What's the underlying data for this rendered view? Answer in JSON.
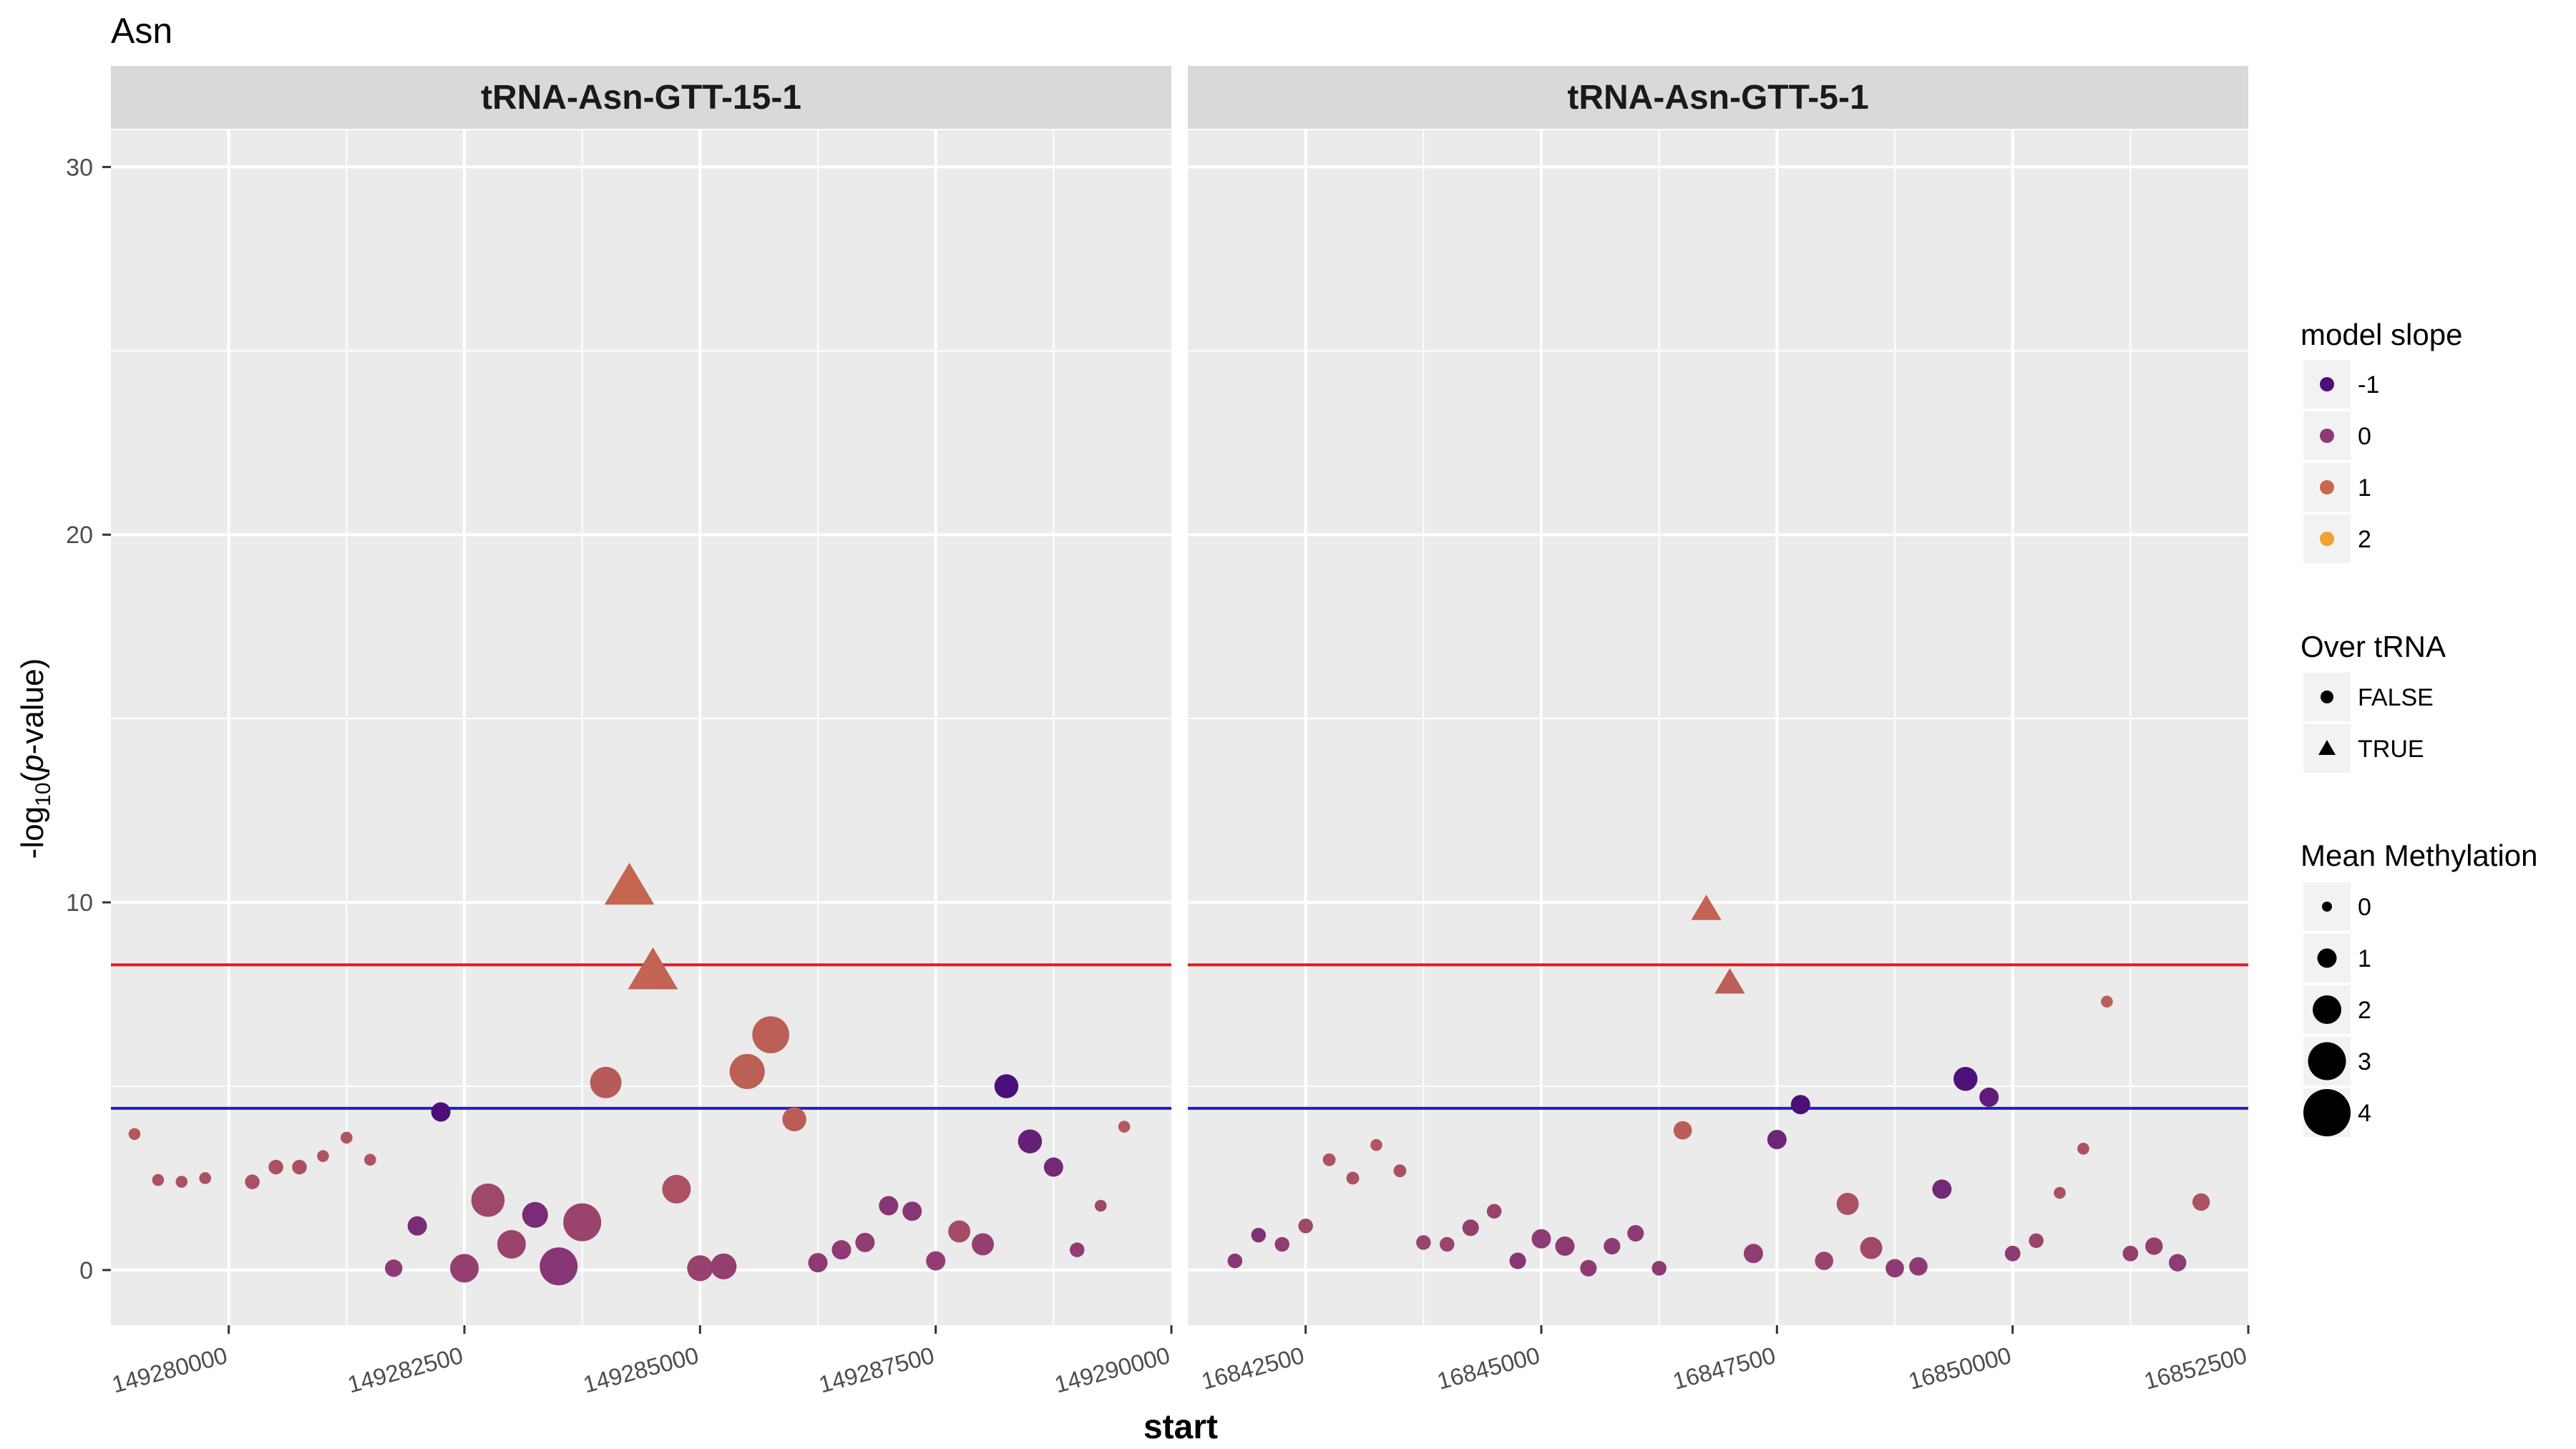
{
  "chart_data": {
    "type": "scatter",
    "title": "Asn",
    "xlabel": "start",
    "ylabel_prefix": "-log",
    "ylabel_sub": "10",
    "ylabel_italic": "p",
    "ylabel_open": "(",
    "ylabel_suffix": "-value)",
    "ylim": [
      -1.5,
      31
    ],
    "y_ticks": [
      0,
      10,
      20,
      30
    ],
    "grid": true,
    "legend_position": "right",
    "thresholds": [
      {
        "y": 8.3,
        "color": "#e41a1c"
      },
      {
        "y": 4.4,
        "color": "#1f1fc8"
      }
    ],
    "legends": {
      "color": {
        "title": "model slope",
        "items": [
          {
            "label": "-1",
            "color": "#4b0f7a"
          },
          {
            "label": "0",
            "color": "#8e3a74"
          },
          {
            "label": "1",
            "color": "#c8684f"
          },
          {
            "label": "2",
            "color": "#f0a22e"
          }
        ]
      },
      "shape": {
        "title": "Over tRNA",
        "items": [
          {
            "label": "FALSE",
            "shape": "circle"
          },
          {
            "label": "TRUE",
            "shape": "triangle"
          }
        ]
      },
      "size": {
        "title": "Mean Methylation",
        "items": [
          {
            "label": "0",
            "size": 0
          },
          {
            "label": "1",
            "size": 1
          },
          {
            "label": "2",
            "size": 2
          },
          {
            "label": "3",
            "size": 3
          },
          {
            "label": "4",
            "size": 4
          }
        ]
      }
    },
    "panels": [
      {
        "title": "tRNA-Asn-GTT-15-1",
        "xlim": [
          149278750,
          149290000
        ],
        "x_major_ticks": [
          149280000,
          149282500,
          149285000,
          149287500,
          149290000
        ],
        "x_tick_labels": [
          "149280000",
          "149282500",
          "149285000",
          "149287500",
          "149290000"
        ],
        "points": [
          {
            "x": 149279000,
            "y": 3.7,
            "slope": 0.65,
            "size": 0.2,
            "tri": false
          },
          {
            "x": 149279250,
            "y": 2.45,
            "slope": 0.5,
            "size": 0.2,
            "tri": false
          },
          {
            "x": 149279500,
            "y": 2.4,
            "slope": 0.5,
            "size": 0.2,
            "tri": false
          },
          {
            "x": 149279750,
            "y": 2.5,
            "slope": 0.5,
            "size": 0.2,
            "tri": false
          },
          {
            "x": 149280250,
            "y": 2.4,
            "slope": 0.5,
            "size": 0.5,
            "tri": false
          },
          {
            "x": 149280500,
            "y": 2.8,
            "slope": 0.5,
            "size": 0.5,
            "tri": false
          },
          {
            "x": 149280750,
            "y": 2.8,
            "slope": 0.5,
            "size": 0.5,
            "tri": false
          },
          {
            "x": 149281000,
            "y": 3.1,
            "slope": 0.55,
            "size": 0.2,
            "tri": false
          },
          {
            "x": 149281250,
            "y": 3.6,
            "slope": 0.6,
            "size": 0.2,
            "tri": false
          },
          {
            "x": 149281500,
            "y": 3.0,
            "slope": 0.55,
            "size": 0.2,
            "tri": false
          },
          {
            "x": 149281750,
            "y": 0.05,
            "slope": 0.0,
            "size": 0.8,
            "tri": false
          },
          {
            "x": 149282000,
            "y": 1.2,
            "slope": -0.3,
            "size": 1.0,
            "tri": false
          },
          {
            "x": 149282250,
            "y": 4.3,
            "slope": -1.0,
            "size": 1.0,
            "tri": false
          },
          {
            "x": 149282500,
            "y": 0.05,
            "slope": 0.1,
            "size": 2.0,
            "tri": false
          },
          {
            "x": 149282750,
            "y": 1.9,
            "slope": 0.3,
            "size": 2.5,
            "tri": false
          },
          {
            "x": 149283000,
            "y": 0.7,
            "slope": 0.2,
            "size": 2.0,
            "tri": false
          },
          {
            "x": 149283250,
            "y": 1.5,
            "slope": -0.3,
            "size": 1.7,
            "tri": false
          },
          {
            "x": 149283500,
            "y": 0.1,
            "slope": -0.1,
            "size": 3.0,
            "tri": false
          },
          {
            "x": 149283750,
            "y": 1.3,
            "slope": 0.2,
            "size": 3.0,
            "tri": false
          },
          {
            "x": 149284000,
            "y": 5.1,
            "slope": 0.7,
            "size": 2.3,
            "tri": false
          },
          {
            "x": 149284250,
            "y": 10.4,
            "slope": 0.95,
            "size": 4.0,
            "tri": true
          },
          {
            "x": 149284500,
            "y": 8.1,
            "slope": 0.9,
            "size": 4.0,
            "tri": true
          },
          {
            "x": 149284750,
            "y": 2.2,
            "slope": 0.5,
            "size": 2.0,
            "tri": false
          },
          {
            "x": 149285000,
            "y": 0.05,
            "slope": 0.15,
            "size": 1.7,
            "tri": false
          },
          {
            "x": 149285250,
            "y": 0.1,
            "slope": 0.1,
            "size": 1.7,
            "tri": false
          },
          {
            "x": 149285500,
            "y": 5.4,
            "slope": 0.8,
            "size": 2.7,
            "tri": false
          },
          {
            "x": 149285750,
            "y": 6.4,
            "slope": 0.8,
            "size": 2.9,
            "tri": false
          },
          {
            "x": 149286000,
            "y": 4.1,
            "slope": 0.75,
            "size": 1.5,
            "tri": false
          },
          {
            "x": 149286250,
            "y": 0.2,
            "slope": 0.0,
            "size": 1.0,
            "tri": false
          },
          {
            "x": 149286500,
            "y": 0.55,
            "slope": 0.0,
            "size": 1.0,
            "tri": false
          },
          {
            "x": 149286750,
            "y": 0.75,
            "slope": 0.05,
            "size": 1.0,
            "tri": false
          },
          {
            "x": 149287000,
            "y": 1.75,
            "slope": -0.1,
            "size": 1.0,
            "tri": false
          },
          {
            "x": 149287250,
            "y": 1.6,
            "slope": -0.1,
            "size": 1.0,
            "tri": false
          },
          {
            "x": 149287500,
            "y": 0.25,
            "slope": 0.05,
            "size": 1.0,
            "tri": false
          },
          {
            "x": 149287750,
            "y": 1.05,
            "slope": 0.4,
            "size": 1.3,
            "tri": false
          },
          {
            "x": 149288000,
            "y": 0.7,
            "slope": 0.1,
            "size": 1.3,
            "tri": false
          },
          {
            "x": 149288250,
            "y": 5.0,
            "slope": -1.0,
            "size": 1.5,
            "tri": false
          },
          {
            "x": 149288500,
            "y": 3.5,
            "slope": -0.6,
            "size": 1.5,
            "tri": false
          },
          {
            "x": 149288750,
            "y": 2.8,
            "slope": -0.4,
            "size": 1.0,
            "tri": false
          },
          {
            "x": 149289000,
            "y": 0.55,
            "slope": 0.05,
            "size": 0.5,
            "tri": false
          },
          {
            "x": 149289250,
            "y": 1.75,
            "slope": 0.3,
            "size": 0.2,
            "tri": false
          },
          {
            "x": 149289500,
            "y": 3.9,
            "slope": 0.65,
            "size": 0.2,
            "tri": false
          }
        ]
      },
      {
        "title": "tRNA-Asn-GTT-5-1",
        "xlim": [
          16841250,
          16852500
        ],
        "x_major_ticks": [
          16842500,
          16845000,
          16847500,
          16850000,
          16852500
        ],
        "x_tick_labels": [
          "16842500",
          "16845000",
          "16847500",
          "16850000",
          "16852500"
        ],
        "points": [
          {
            "x": 16841750,
            "y": 0.25,
            "slope": -0.1,
            "size": 0.5,
            "tri": false
          },
          {
            "x": 16842000,
            "y": 0.95,
            "slope": -0.2,
            "size": 0.5,
            "tri": false
          },
          {
            "x": 16842250,
            "y": 0.7,
            "slope": 0.05,
            "size": 0.5,
            "tri": false
          },
          {
            "x": 16842500,
            "y": 1.2,
            "slope": 0.3,
            "size": 0.5,
            "tri": false
          },
          {
            "x": 16842750,
            "y": 3.0,
            "slope": 0.55,
            "size": 0.3,
            "tri": false
          },
          {
            "x": 16843000,
            "y": 2.5,
            "slope": 0.5,
            "size": 0.3,
            "tri": false
          },
          {
            "x": 16843250,
            "y": 3.4,
            "slope": 0.6,
            "size": 0.2,
            "tri": false
          },
          {
            "x": 16843500,
            "y": 2.7,
            "slope": 0.5,
            "size": 0.3,
            "tri": false
          },
          {
            "x": 16843750,
            "y": 0.75,
            "slope": 0.2,
            "size": 0.5,
            "tri": false
          },
          {
            "x": 16844000,
            "y": 0.7,
            "slope": 0.2,
            "size": 0.5,
            "tri": false
          },
          {
            "x": 16844250,
            "y": 1.15,
            "slope": 0.1,
            "size": 0.7,
            "tri": false
          },
          {
            "x": 16844500,
            "y": 1.6,
            "slope": 0.2,
            "size": 0.5,
            "tri": false
          },
          {
            "x": 16844750,
            "y": 0.25,
            "slope": -0.1,
            "size": 0.7,
            "tri": false
          },
          {
            "x": 16845000,
            "y": 0.85,
            "slope": 0.0,
            "size": 1.0,
            "tri": false
          },
          {
            "x": 16845250,
            "y": 0.65,
            "slope": 0.0,
            "size": 1.0,
            "tri": false
          },
          {
            "x": 16845500,
            "y": 0.05,
            "slope": 0.0,
            "size": 0.7,
            "tri": false
          },
          {
            "x": 16845750,
            "y": 0.65,
            "slope": 0.0,
            "size": 0.7,
            "tri": false
          },
          {
            "x": 16846000,
            "y": 1.0,
            "slope": 0.0,
            "size": 0.7,
            "tri": false
          },
          {
            "x": 16846250,
            "y": 0.05,
            "slope": 0.0,
            "size": 0.5,
            "tri": false
          },
          {
            "x": 16846500,
            "y": 3.8,
            "slope": 0.75,
            "size": 0.9,
            "tri": false
          },
          {
            "x": 16846750,
            "y": 9.8,
            "slope": 0.9,
            "size": 2.0,
            "tri": true
          },
          {
            "x": 16847000,
            "y": 7.8,
            "slope": 0.8,
            "size": 2.0,
            "tri": true
          },
          {
            "x": 16847250,
            "y": 0.45,
            "slope": 0.05,
            "size": 1.0,
            "tri": false
          },
          {
            "x": 16847500,
            "y": 3.55,
            "slope": -0.5,
            "size": 1.0,
            "tri": false
          },
          {
            "x": 16847750,
            "y": 4.5,
            "slope": -1.0,
            "size": 1.0,
            "tri": false
          },
          {
            "x": 16848000,
            "y": 0.25,
            "slope": 0.2,
            "size": 0.9,
            "tri": false
          },
          {
            "x": 16848250,
            "y": 1.8,
            "slope": 0.5,
            "size": 1.3,
            "tri": false
          },
          {
            "x": 16848500,
            "y": 0.6,
            "slope": 0.3,
            "size": 1.3,
            "tri": false
          },
          {
            "x": 16848750,
            "y": 0.05,
            "slope": 0.0,
            "size": 0.9,
            "tri": false
          },
          {
            "x": 16849000,
            "y": 0.1,
            "slope": 0.0,
            "size": 0.9,
            "tri": false
          },
          {
            "x": 16849250,
            "y": 2.2,
            "slope": -0.4,
            "size": 1.0,
            "tri": false
          },
          {
            "x": 16849500,
            "y": 5.2,
            "slope": -0.95,
            "size": 1.5,
            "tri": false
          },
          {
            "x": 16849750,
            "y": 4.7,
            "slope": -0.7,
            "size": 1.0,
            "tri": false
          },
          {
            "x": 16850000,
            "y": 0.45,
            "slope": 0.0,
            "size": 0.6,
            "tri": false
          },
          {
            "x": 16850250,
            "y": 0.8,
            "slope": 0.2,
            "size": 0.5,
            "tri": false
          },
          {
            "x": 16850500,
            "y": 2.1,
            "slope": 0.5,
            "size": 0.2,
            "tri": false
          },
          {
            "x": 16850750,
            "y": 3.3,
            "slope": 0.5,
            "size": 0.2,
            "tri": false
          },
          {
            "x": 16851000,
            "y": 7.3,
            "slope": 0.8,
            "size": 0.2,
            "tri": false
          },
          {
            "x": 16851250,
            "y": 0.45,
            "slope": 0.1,
            "size": 0.6,
            "tri": false
          },
          {
            "x": 16851500,
            "y": 0.65,
            "slope": 0.1,
            "size": 0.8,
            "tri": false
          },
          {
            "x": 16851750,
            "y": 0.2,
            "slope": 0.0,
            "size": 0.8,
            "tri": false
          },
          {
            "x": 16852000,
            "y": 1.85,
            "slope": 0.5,
            "size": 0.8,
            "tri": false
          }
        ]
      }
    ]
  }
}
